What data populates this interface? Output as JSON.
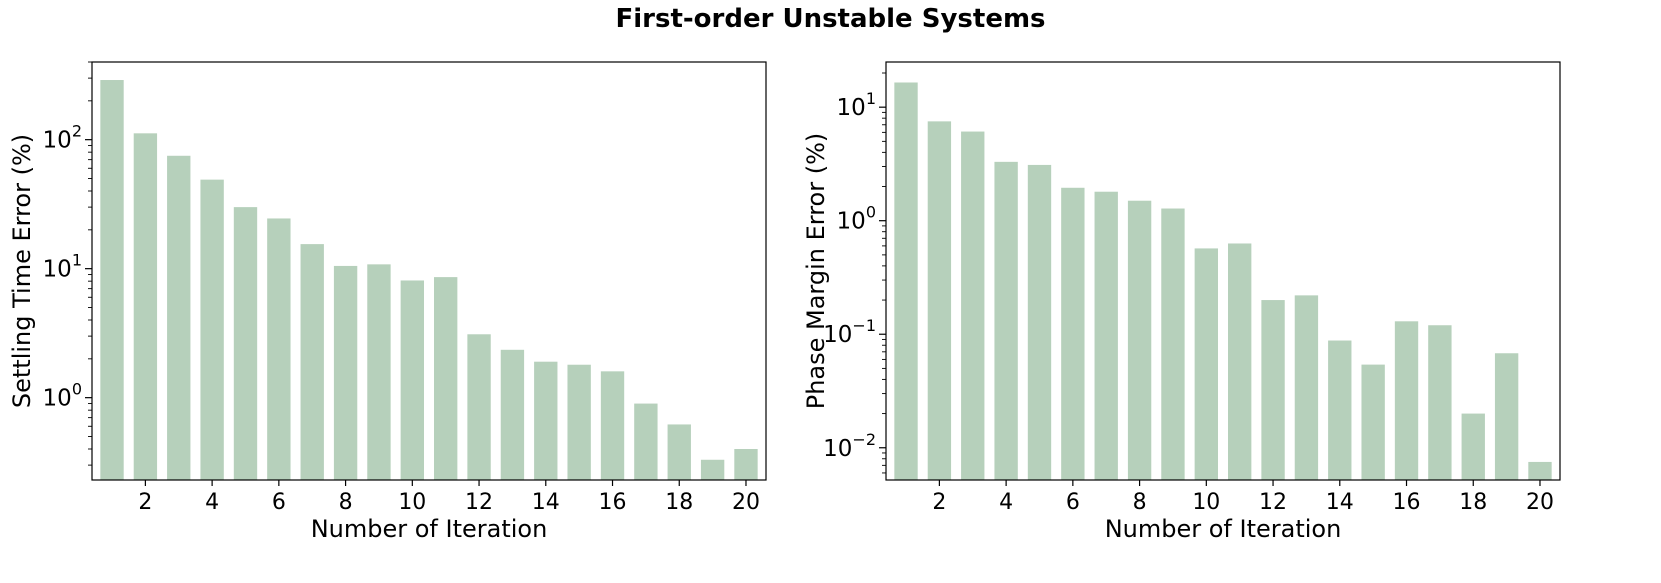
{
  "suptitle": "First-order Unstable Systems",
  "colors": {
    "bar": "#b6d0bb",
    "axis": "#000000"
  },
  "chart_data": [
    {
      "type": "bar",
      "ylabel": "Settling Time Error (%)",
      "xlabel": "Number of Iteration",
      "yscale": "log",
      "ylim": [
        0.23,
        400
      ],
      "x": [
        1,
        2,
        3,
        4,
        5,
        6,
        7,
        8,
        9,
        10,
        11,
        12,
        13,
        14,
        15,
        16,
        17,
        18,
        19,
        20
      ],
      "values": [
        290,
        112,
        75,
        49,
        30,
        24.5,
        15.5,
        10.5,
        10.8,
        8.1,
        8.6,
        3.1,
        2.35,
        1.9,
        1.8,
        1.6,
        0.9,
        0.62,
        0.33,
        0.4
      ],
      "xticks": [
        "2",
        "4",
        "6",
        "8",
        "10",
        "12",
        "14",
        "16",
        "18",
        "20"
      ],
      "yticks": [
        {
          "value": 1,
          "base": "10",
          "exp": "0"
        },
        {
          "value": 10,
          "base": "10",
          "exp": "1"
        },
        {
          "value": 100,
          "base": "10",
          "exp": "2"
        }
      ]
    },
    {
      "type": "bar",
      "ylabel": "Phase Margin Error (%)",
      "xlabel": "Number of Iteration",
      "yscale": "log",
      "ylim": [
        0.0052,
        25
      ],
      "x": [
        1,
        2,
        3,
        4,
        5,
        6,
        7,
        8,
        9,
        10,
        11,
        12,
        13,
        14,
        15,
        16,
        17,
        18,
        19,
        20
      ],
      "values": [
        16.5,
        7.5,
        6.1,
        3.3,
        3.1,
        1.95,
        1.8,
        1.5,
        1.28,
        0.57,
        0.63,
        0.2,
        0.22,
        0.088,
        0.054,
        0.13,
        0.12,
        0.02,
        0.068,
        0.0075
      ],
      "xticks": [
        "2",
        "4",
        "6",
        "8",
        "10",
        "12",
        "14",
        "16",
        "18",
        "20"
      ],
      "yticks": [
        {
          "value": 0.01,
          "base": "10",
          "exp": "−2"
        },
        {
          "value": 0.1,
          "base": "10",
          "exp": "−1"
        },
        {
          "value": 1,
          "base": "10",
          "exp": "0"
        },
        {
          "value": 10,
          "base": "10",
          "exp": "1"
        }
      ]
    }
  ]
}
